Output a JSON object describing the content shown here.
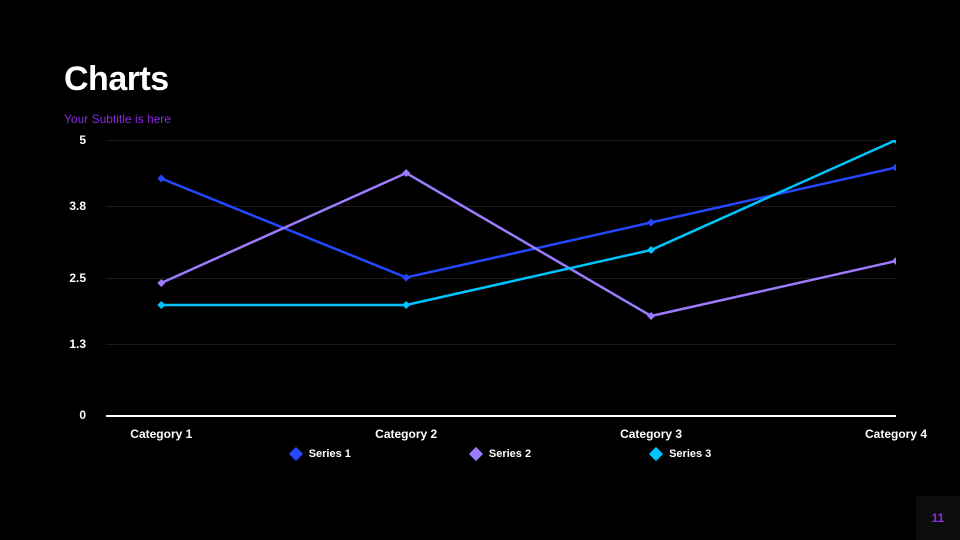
{
  "title": "Charts",
  "title_fontsize": 34,
  "subtitle": "Your Subtitle is here",
  "subtitle_color": "#8a2be2",
  "page_number": "11",
  "page_number_color": "#8a2be2",
  "chart": {
    "type": "line",
    "background_color": "#000000",
    "grid_color": "#1a1a1a",
    "axis_color": "#ffffff",
    "text_color": "#ffffff",
    "label_fontsize": 12,
    "ylim": [
      0,
      5
    ],
    "yticks": [
      0,
      1.3,
      2.5,
      3.8,
      5
    ],
    "ytick_labels": [
      "0",
      "1.3",
      "2.5",
      "3.8",
      "5"
    ],
    "categories": [
      "Category 1",
      "Category 2",
      "Category 3",
      "Category 4"
    ],
    "line_width": 2.5,
    "marker_size": 8,
    "marker_shape": "diamond",
    "series": [
      {
        "name": "Series 1",
        "color": "#2447ff",
        "values": [
          4.3,
          2.5,
          3.5,
          4.5
        ]
      },
      {
        "name": "Series 2",
        "color": "#9d7bff",
        "values": [
          2.4,
          4.4,
          1.8,
          2.8
        ]
      },
      {
        "name": "Series 3",
        "color": "#00c4ff",
        "values": [
          2.0,
          2.0,
          3.0,
          5.0
        ]
      }
    ]
  }
}
